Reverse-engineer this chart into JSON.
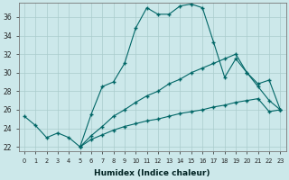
{
  "xlabel": "Humidex (Indice chaleur)",
  "background_color": "#cce8ea",
  "grid_color": "#aacccc",
  "line_color": "#006666",
  "xlim": [
    -0.5,
    23.5
  ],
  "ylim": [
    21.5,
    37.5
  ],
  "xticks": [
    0,
    1,
    2,
    3,
    4,
    5,
    6,
    7,
    8,
    9,
    10,
    11,
    12,
    13,
    14,
    15,
    16,
    17,
    18,
    19,
    20,
    21,
    22,
    23
  ],
  "yticks": [
    22,
    24,
    26,
    28,
    30,
    32,
    34,
    36
  ],
  "line1": {
    "x": [
      0,
      1,
      2,
      3,
      4,
      5,
      6,
      7,
      8,
      9,
      10,
      11,
      12,
      13,
      14,
      15,
      16,
      17,
      18,
      19,
      20,
      21,
      22,
      23
    ],
    "y": [
      25.3,
      24.3,
      23.0,
      23.5,
      23.0,
      22.0,
      25.5,
      28.5,
      29.0,
      31.0,
      34.8,
      37.0,
      36.3,
      36.3,
      37.2,
      37.4,
      37.0,
      33.3,
      29.5,
      31.5,
      30.0,
      28.5,
      27.0,
      26.0
    ]
  },
  "line2": {
    "x": [
      5,
      6,
      7,
      8,
      9,
      10,
      11,
      12,
      13,
      14,
      15,
      16,
      17,
      18,
      19,
      20,
      21,
      22,
      23
    ],
    "y": [
      22.0,
      23.2,
      24.2,
      25.3,
      26.0,
      26.8,
      27.5,
      28.0,
      28.8,
      29.3,
      30.0,
      30.5,
      31.0,
      31.5,
      32.0,
      30.0,
      28.8,
      29.2,
      26.0
    ]
  },
  "line3": {
    "x": [
      5,
      6,
      7,
      8,
      9,
      10,
      11,
      12,
      13,
      14,
      15,
      16,
      17,
      18,
      19,
      20,
      21,
      22,
      23
    ],
    "y": [
      22.0,
      22.8,
      23.3,
      23.8,
      24.2,
      24.5,
      24.8,
      25.0,
      25.3,
      25.6,
      25.8,
      26.0,
      26.3,
      26.5,
      26.8,
      27.0,
      27.2,
      25.8,
      26.0
    ]
  }
}
